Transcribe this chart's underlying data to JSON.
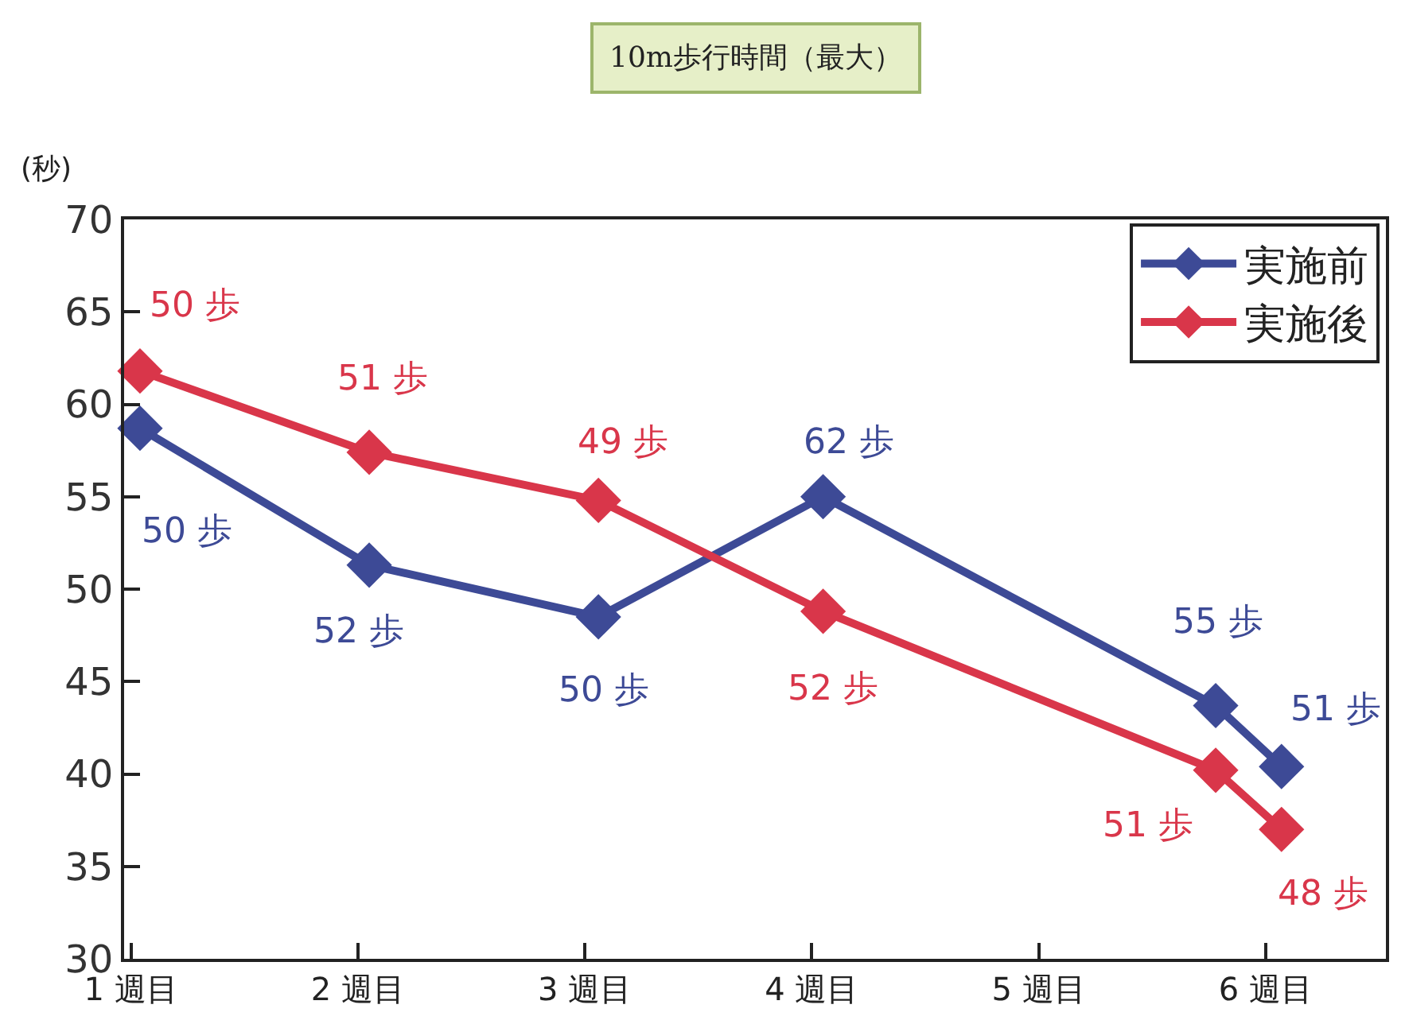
{
  "chart_data": {
    "type": "line",
    "title": "10m歩行時間（最大）",
    "ylabel": "(秒)",
    "x": [
      1.04,
      2.05,
      3.06,
      4.05,
      5.78,
      6.07
    ],
    "xlim": [
      0.97,
      6.53
    ],
    "xticks": [
      {
        "value": 1,
        "label": "1 週目"
      },
      {
        "value": 2,
        "label": "2 週目"
      },
      {
        "value": 3,
        "label": "3 週目"
      },
      {
        "value": 4,
        "label": "4 週目"
      },
      {
        "value": 5,
        "label": "5 週目"
      },
      {
        "value": 6,
        "label": "6 週目"
      }
    ],
    "ylim": [
      30,
      70
    ],
    "yticks": [
      30,
      35,
      40,
      45,
      50,
      55,
      60,
      65,
      70
    ],
    "series": [
      {
        "name": "実施前",
        "color": "#3d4a96",
        "values": [
          58.7,
          51.3,
          48.5,
          55.0,
          43.7,
          40.4
        ]
      },
      {
        "name": "実施後",
        "color": "#d9364a",
        "values": [
          61.8,
          57.4,
          54.8,
          48.8,
          40.2,
          37.0
        ]
      }
    ],
    "annotations": [
      {
        "text": "50 歩",
        "x": 1.04,
        "y": 58.7
      },
      {
        "text": "52 歩",
        "x": 2.05,
        "y": 51.3
      },
      {
        "text": "50 歩",
        "x": 3.06,
        "y": 48.5
      },
      {
        "text": "62 歩",
        "x": 4.05,
        "y": 55.0
      },
      {
        "text": "55 歩",
        "x": 5.78,
        "y": 43.7
      },
      {
        "text": "51 歩",
        "x": 6.07,
        "y": 40.4
      },
      {
        "text": "50 歩",
        "x": 1.04,
        "y": 61.8
      },
      {
        "text": "51 歩",
        "x": 2.05,
        "y": 57.4
      },
      {
        "text": "49 歩",
        "x": 3.06,
        "y": 54.8
      },
      {
        "text": "52 歩",
        "x": 4.05,
        "y": 48.8
      },
      {
        "text": "51 歩",
        "x": 5.78,
        "y": 40.2
      },
      {
        "text": "48 歩",
        "x": 6.07,
        "y": 37.0
      }
    ],
    "legend": "top right",
    "marker": "diamond",
    "line_style": "solid"
  }
}
